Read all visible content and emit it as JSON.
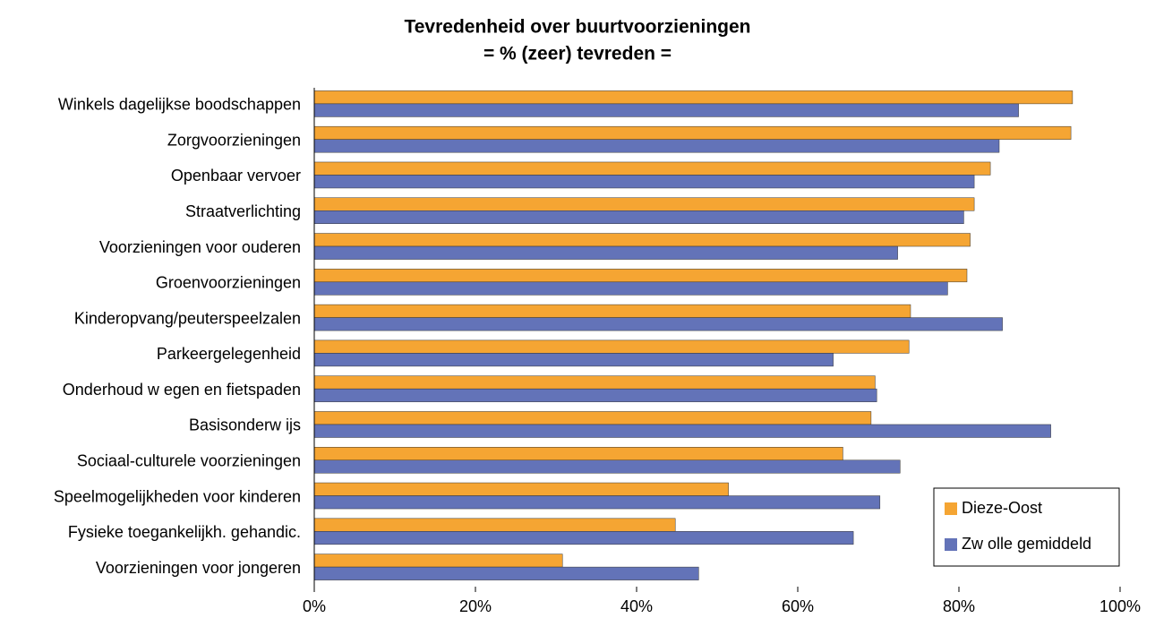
{
  "chart_data": {
    "type": "barh",
    "title": "Tevredenheid over buurtvoorzieningen",
    "subtitle": "= % (zeer) tevreden =",
    "categories": [
      "Winkels dagelijkse boodschappen",
      "Zorgvoorzieningen",
      "Openbaar vervoer",
      "Straatverlichting",
      "Voorzieningen voor ouderen",
      "Groenvoorzieningen",
      "Kinderopvang/peuterspeelzalen",
      "Parkeergelegenheid",
      "Onderhoud w egen en fietspaden",
      "Basisonderw ijs",
      "Sociaal-culturele voorzieningen",
      "Speelmogelijkheden voor kinderen",
      "Fysieke toegankelijkh. gehandic.",
      "Voorzieningen voor jongeren"
    ],
    "series": [
      {
        "name": "Dieze-Oost",
        "color": "#f5a533",
        "values": [
          94.1,
          93.9,
          83.9,
          81.9,
          81.4,
          81.0,
          74.0,
          73.8,
          69.6,
          69.1,
          65.6,
          51.4,
          44.8,
          30.8
        ]
      },
      {
        "name": "Zw olle gemiddeld",
        "color": "#6373b8",
        "values": [
          87.4,
          85.0,
          81.9,
          80.6,
          72.4,
          78.6,
          85.4,
          64.4,
          69.8,
          91.4,
          72.7,
          70.2,
          66.9,
          47.7
        ]
      }
    ],
    "xlim": [
      0,
      100
    ],
    "xticks": [
      {
        "value": 0,
        "label": "0%"
      },
      {
        "value": 20,
        "label": "20%"
      },
      {
        "value": 40,
        "label": "40%"
      },
      {
        "value": 60,
        "label": "60%"
      },
      {
        "value": 80,
        "label": "80%"
      },
      {
        "value": 100,
        "label": "100%"
      }
    ],
    "legend": "lower right"
  }
}
